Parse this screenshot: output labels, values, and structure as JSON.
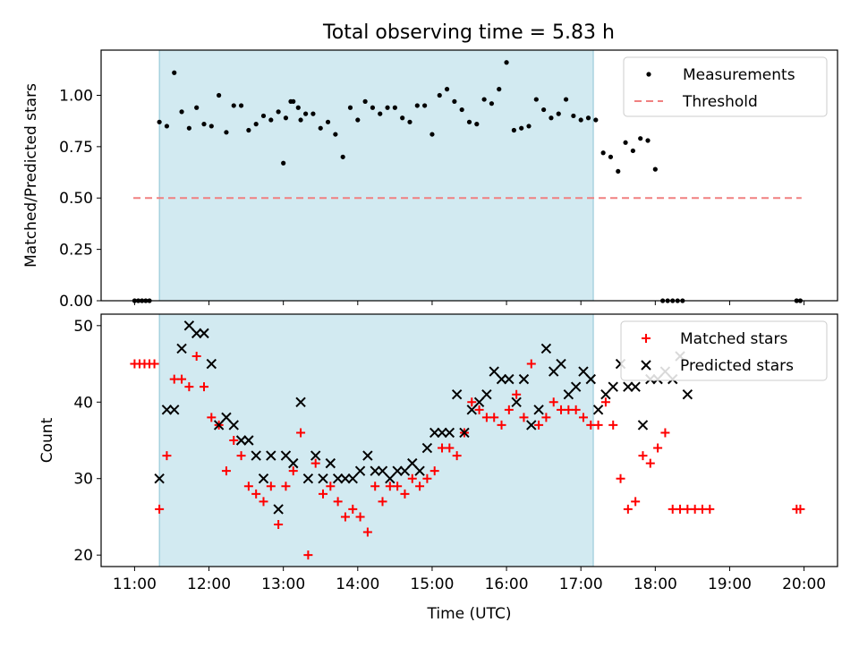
{
  "title": "Total observing time = 5.83 h",
  "colors": {
    "span": "#add8e6",
    "measurement": "#000000",
    "threshold": "#f08080",
    "matched": "#ff0000",
    "predicted": "#000000"
  },
  "chart_data": [
    {
      "type": "scatter",
      "title": "Total observing time = 5.83 h",
      "xlabel": "",
      "ylabel": "Matched/Predicted stars",
      "xlim": [
        "10:33",
        "20:27"
      ],
      "ylim": [
        0,
        1.22
      ],
      "yticks": [
        0.0,
        0.25,
        0.5,
        0.75,
        1.0
      ],
      "ytick_labels": [
        "0.00",
        "0.25",
        "0.50",
        "0.75",
        "1.00"
      ],
      "observing_span": [
        "11:20",
        "17:10"
      ],
      "legend": {
        "placement": "top-right",
        "entries": [
          "Measurements",
          "Threshold"
        ]
      },
      "series": [
        {
          "name": "Measurements",
          "marker": "dot",
          "points": [
            [
              "11:00",
              0
            ],
            [
              "11:03",
              0
            ],
            [
              "11:06",
              0
            ],
            [
              "11:09",
              0
            ],
            [
              "11:12",
              0
            ],
            [
              "11:20",
              0.87
            ],
            [
              "11:26",
              0.85
            ],
            [
              "11:32",
              1.11
            ],
            [
              "11:38",
              0.92
            ],
            [
              "11:44",
              0.84
            ],
            [
              "11:50",
              0.94
            ],
            [
              "11:56",
              0.86
            ],
            [
              "12:02",
              0.85
            ],
            [
              "12:08",
              1.0
            ],
            [
              "12:14",
              0.82
            ],
            [
              "12:20",
              0.95
            ],
            [
              "12:26",
              0.95
            ],
            [
              "12:32",
              0.83
            ],
            [
              "12:38",
              0.86
            ],
            [
              "12:44",
              0.9
            ],
            [
              "12:50",
              0.88
            ],
            [
              "12:56",
              0.92
            ],
            [
              "13:02",
              0.89
            ],
            [
              "13:08",
              0.97
            ],
            [
              "13:14",
              0.88
            ],
            [
              "13:00",
              0.67
            ],
            [
              "13:06",
              0.97
            ],
            [
              "13:12",
              0.94
            ],
            [
              "13:18",
              0.91
            ],
            [
              "13:24",
              0.91
            ],
            [
              "13:30",
              0.84
            ],
            [
              "13:36",
              0.87
            ],
            [
              "13:42",
              0.81
            ],
            [
              "13:48",
              0.7
            ],
            [
              "13:54",
              0.94
            ],
            [
              "14:00",
              0.88
            ],
            [
              "14:06",
              0.97
            ],
            [
              "14:12",
              0.94
            ],
            [
              "14:18",
              0.91
            ],
            [
              "14:24",
              0.94
            ],
            [
              "14:30",
              0.94
            ],
            [
              "14:36",
              0.89
            ],
            [
              "14:42",
              0.87
            ],
            [
              "14:48",
              0.95
            ],
            [
              "14:54",
              0.95
            ],
            [
              "15:00",
              0.81
            ],
            [
              "15:06",
              1.0
            ],
            [
              "15:12",
              1.03
            ],
            [
              "15:18",
              0.97
            ],
            [
              "15:24",
              0.93
            ],
            [
              "15:30",
              0.87
            ],
            [
              "15:36",
              0.86
            ],
            [
              "15:42",
              0.98
            ],
            [
              "15:48",
              0.96
            ],
            [
              "15:54",
              1.03
            ],
            [
              "16:00",
              1.16
            ],
            [
              "16:06",
              0.83
            ],
            [
              "16:12",
              0.84
            ],
            [
              "16:18",
              0.85
            ],
            [
              "16:24",
              0.98
            ],
            [
              "16:30",
              0.93
            ],
            [
              "16:36",
              0.89
            ],
            [
              "16:42",
              0.91
            ],
            [
              "16:48",
              0.98
            ],
            [
              "16:54",
              0.9
            ],
            [
              "17:00",
              0.88
            ],
            [
              "17:06",
              0.89
            ],
            [
              "17:12",
              0.88
            ],
            [
              "17:18",
              0.72
            ],
            [
              "17:24",
              0.7
            ],
            [
              "17:30",
              0.63
            ],
            [
              "17:36",
              0.77
            ],
            [
              "17:42",
              0.73
            ],
            [
              "17:48",
              0.79
            ],
            [
              "17:54",
              0.78
            ],
            [
              "18:00",
              0.64
            ],
            [
              "18:06",
              0
            ],
            [
              "18:10",
              0
            ],
            [
              "18:14",
              0
            ],
            [
              "18:18",
              0
            ],
            [
              "18:22",
              0
            ],
            [
              "19:54",
              0
            ],
            [
              "19:57",
              0
            ]
          ]
        },
        {
          "name": "Threshold",
          "marker": "dashed-line",
          "points": [
            [
              "10:59",
              0.5
            ],
            [
              "19:58",
              0.5
            ]
          ]
        }
      ]
    },
    {
      "type": "scatter",
      "xlabel": "Time (UTC)",
      "ylabel": "Count",
      "xlim": [
        "10:33",
        "20:27"
      ],
      "ylim": [
        18.5,
        51.5
      ],
      "yticks": [
        20,
        30,
        40,
        50
      ],
      "ytick_labels": [
        "20",
        "30",
        "40",
        "50"
      ],
      "xticks": [
        "11:00",
        "12:00",
        "13:00",
        "14:00",
        "15:00",
        "16:00",
        "17:00",
        "18:00",
        "19:00",
        "20:00"
      ],
      "observing_span": [
        "11:20",
        "17:10"
      ],
      "legend": {
        "placement": "top-right",
        "entries": [
          "Matched stars",
          "Predicted stars"
        ]
      },
      "series": [
        {
          "name": "Matched stars",
          "marker": "plus",
          "points": [
            [
              "11:00",
              45
            ],
            [
              "11:04",
              45
            ],
            [
              "11:08",
              45
            ],
            [
              "11:12",
              45
            ],
            [
              "11:16",
              45
            ],
            [
              "11:20",
              26
            ],
            [
              "11:26",
              33
            ],
            [
              "11:32",
              43
            ],
            [
              "11:38",
              43
            ],
            [
              "11:44",
              42
            ],
            [
              "11:50",
              46
            ],
            [
              "11:56",
              42
            ],
            [
              "12:02",
              38
            ],
            [
              "12:08",
              37
            ],
            [
              "12:14",
              31
            ],
            [
              "12:20",
              35
            ],
            [
              "12:26",
              33
            ],
            [
              "12:32",
              29
            ],
            [
              "12:38",
              28
            ],
            [
              "12:44",
              27
            ],
            [
              "12:50",
              29
            ],
            [
              "12:56",
              24
            ],
            [
              "13:02",
              29
            ],
            [
              "13:08",
              31
            ],
            [
              "13:14",
              36
            ],
            [
              "13:20",
              20
            ],
            [
              "13:26",
              32
            ],
            [
              "13:32",
              28
            ],
            [
              "13:38",
              29
            ],
            [
              "13:44",
              27
            ],
            [
              "13:50",
              25
            ],
            [
              "13:56",
              26
            ],
            [
              "14:02",
              25
            ],
            [
              "14:08",
              23
            ],
            [
              "14:14",
              29
            ],
            [
              "14:20",
              27
            ],
            [
              "14:26",
              29
            ],
            [
              "14:32",
              29
            ],
            [
              "14:38",
              28
            ],
            [
              "14:44",
              30
            ],
            [
              "14:50",
              29
            ],
            [
              "14:56",
              30
            ],
            [
              "15:02",
              31
            ],
            [
              "15:08",
              34
            ],
            [
              "15:14",
              34
            ],
            [
              "15:20",
              33
            ],
            [
              "15:26",
              36
            ],
            [
              "15:32",
              40
            ],
            [
              "15:38",
              39
            ],
            [
              "15:44",
              38
            ],
            [
              "15:50",
              38
            ],
            [
              "15:56",
              37
            ],
            [
              "16:02",
              39
            ],
            [
              "16:08",
              41
            ],
            [
              "16:14",
              38
            ],
            [
              "16:20",
              45
            ],
            [
              "16:26",
              37
            ],
            [
              "16:32",
              38
            ],
            [
              "16:38",
              40
            ],
            [
              "16:44",
              39
            ],
            [
              "16:50",
              39
            ],
            [
              "16:56",
              39
            ],
            [
              "17:02",
              38
            ],
            [
              "17:08",
              37
            ],
            [
              "17:14",
              37
            ],
            [
              "17:20",
              40
            ],
            [
              "17:26",
              37
            ],
            [
              "17:32",
              30
            ],
            [
              "17:38",
              26
            ],
            [
              "17:44",
              27
            ],
            [
              "17:50",
              33
            ],
            [
              "17:56",
              32
            ],
            [
              "18:02",
              34
            ],
            [
              "18:08",
              36
            ],
            [
              "18:14",
              26
            ],
            [
              "18:20",
              26
            ],
            [
              "18:26",
              26
            ],
            [
              "18:32",
              26
            ],
            [
              "18:38",
              26
            ],
            [
              "18:44",
              26
            ],
            [
              "19:54",
              26
            ],
            [
              "19:57",
              26
            ]
          ]
        },
        {
          "name": "Predicted stars",
          "marker": "x",
          "points": [
            [
              "11:20",
              30
            ],
            [
              "11:26",
              39
            ],
            [
              "11:32",
              39
            ],
            [
              "11:38",
              47
            ],
            [
              "11:44",
              50
            ],
            [
              "11:50",
              49
            ],
            [
              "11:56",
              49
            ],
            [
              "12:02",
              45
            ],
            [
              "12:08",
              37
            ],
            [
              "12:14",
              38
            ],
            [
              "12:20",
              37
            ],
            [
              "12:26",
              35
            ],
            [
              "12:32",
              35
            ],
            [
              "12:38",
              33
            ],
            [
              "12:44",
              30
            ],
            [
              "12:50",
              33
            ],
            [
              "12:56",
              26
            ],
            [
              "13:02",
              33
            ],
            [
              "13:08",
              32
            ],
            [
              "13:14",
              40
            ],
            [
              "13:20",
              30
            ],
            [
              "13:26",
              33
            ],
            [
              "13:32",
              30
            ],
            [
              "13:38",
              32
            ],
            [
              "13:44",
              30
            ],
            [
              "13:50",
              30
            ],
            [
              "13:56",
              30
            ],
            [
              "14:02",
              31
            ],
            [
              "14:08",
              33
            ],
            [
              "14:14",
              31
            ],
            [
              "14:20",
              31
            ],
            [
              "14:26",
              30
            ],
            [
              "14:32",
              31
            ],
            [
              "14:38",
              31
            ],
            [
              "14:44",
              32
            ],
            [
              "14:50",
              31
            ],
            [
              "14:56",
              34
            ],
            [
              "15:02",
              36
            ],
            [
              "15:08",
              36
            ],
            [
              "15:14",
              36
            ],
            [
              "15:20",
              41
            ],
            [
              "15:26",
              36
            ],
            [
              "15:32",
              39
            ],
            [
              "15:38",
              40
            ],
            [
              "15:44",
              41
            ],
            [
              "15:50",
              44
            ],
            [
              "15:56",
              43
            ],
            [
              "16:02",
              43
            ],
            [
              "16:08",
              40
            ],
            [
              "16:14",
              43
            ],
            [
              "16:20",
              37
            ],
            [
              "16:26",
              39
            ],
            [
              "16:32",
              47
            ],
            [
              "16:38",
              44
            ],
            [
              "16:44",
              45
            ],
            [
              "16:50",
              41
            ],
            [
              "16:56",
              42
            ],
            [
              "17:02",
              44
            ],
            [
              "17:08",
              43
            ],
            [
              "17:14",
              39
            ],
            [
              "17:20",
              41
            ],
            [
              "17:26",
              42
            ],
            [
              "17:32",
              45
            ],
            [
              "17:38",
              42
            ],
            [
              "17:44",
              42
            ],
            [
              "17:50",
              37
            ],
            [
              "17:56",
              43
            ],
            [
              "18:02",
              43
            ],
            [
              "18:08",
              44
            ],
            [
              "18:14",
              43
            ],
            [
              "18:20",
              46
            ],
            [
              "18:26",
              41
            ]
          ]
        }
      ]
    }
  ]
}
